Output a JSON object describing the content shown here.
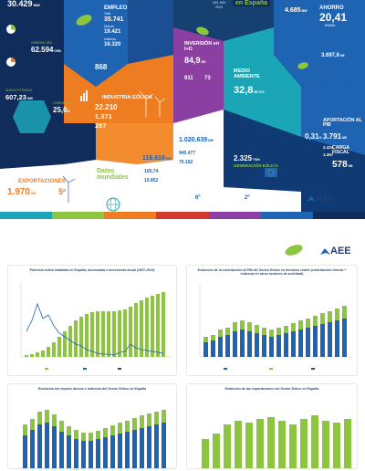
{
  "left_col": {
    "top_value": "30.429",
    "top_unit": "MW",
    "gen_label": "GENERACIÓN",
    "gen_value": "62.594",
    "gen_unit": "GWh",
    "potencia_label": "NUEVA POTENCIA",
    "potencia_value": "607,23",
    "potencia_unit": "MW",
    "cobertura_label": "COBERTURA",
    "cobertura_value": "25,6",
    "cobertura_unit": "%"
  },
  "empleo": {
    "title": "EMPLEO",
    "total_label": "Total",
    "total_value": "35.741",
    "directo_label": "Directo",
    "directo_value": "19.421",
    "indirecto_label": "Indirecto",
    "indirecto_value": "16.320"
  },
  "mix": {
    "label": "DEL MIX",
    "year": "2023",
    "banner": "en España"
  },
  "andorra": {
    "value_left": "4.685",
    "unit_left": "MW",
    "title": "AHORRO",
    "value_right": "20,41",
    "unit_right": "€/MWh",
    "value_bottom": "3.697,6",
    "unit_bottom": "M€"
  },
  "center_orange": {
    "value": "868"
  },
  "inversion": {
    "title": "INVERSIÓN en I+D",
    "value": "84,9",
    "unit": "M€",
    "num1": "911",
    "num2": "73"
  },
  "medio": {
    "title": "MEDIO AMBIENTE",
    "value": "32,8",
    "unit": "Mt CO₂"
  },
  "industria": {
    "title": "INDUSTRIA EÓLICA",
    "v1": "22.210",
    "v2": "1.371",
    "v3": "287"
  },
  "aportacion": {
    "title": "APORTACIÓN AL PIB",
    "value_pct": "0,31",
    "pct_unit": "%",
    "value_meur": "3.791",
    "meur_unit": "M€",
    "sub1": "2.434",
    "sub2": "1.357"
  },
  "carga": {
    "title": "CARGA FISCAL",
    "value": "578",
    "unit": "M€"
  },
  "datos": {
    "title": "Datos mundiales",
    "potencia_value": "116.616",
    "potencia_unit": "MW",
    "installed_value": "1.020.639",
    "installed_unit": "MW",
    "v3": "105,74",
    "v4": "10.852",
    "v5": "945.477",
    "v6": "75.162",
    "rank_left": "6º",
    "rank_right": "2º"
  },
  "generacion": {
    "value": "2.325",
    "unit": "TWh",
    "title": "GENERACIÓN EÓLICA"
  },
  "exportaciones": {
    "title": "EXPORTACIONES",
    "value": "1.970",
    "unit": "M€",
    "rank": "5º"
  },
  "logo": {
    "text": "AEE"
  },
  "colors": {
    "navy": "#0f2c5a",
    "blue": "#1f63b3",
    "orange": "#ee7d22",
    "green": "#8cc63f",
    "purple": "#8c3fa3",
    "teal": "#1aa6b7",
    "red": "#d23a2f"
  },
  "charts": {
    "p1": {
      "title": "Potencia eólica instalada en España, acumulada e incremento anual (1997-2023)"
    },
    "p2": {
      "title": "Evolución de la contribución al PIB del Sector Eólico en términos reales (contribución directa + indirecta en otros sectores de actividad)"
    },
    "p3": {
      "title": "Evolución del empleo directo e indirecto del Sector Eólico en España"
    },
    "p4": {
      "title": "Evolución de las exportaciones del Sector Eólico en España"
    }
  }
}
